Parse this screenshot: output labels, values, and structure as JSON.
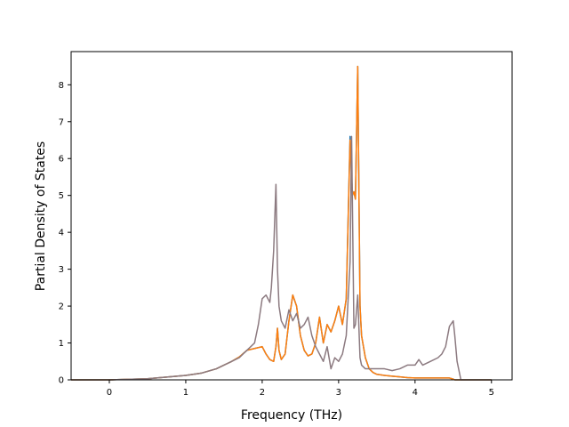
{
  "chart_data": {
    "type": "line",
    "title": "",
    "xlabel": "Frequency (THz)",
    "ylabel": "Partial Density of States",
    "xlim": [
      -0.5,
      5.27
    ],
    "ylim": [
      0,
      8.9
    ],
    "xticks": [
      0,
      1,
      2,
      3,
      4,
      5
    ],
    "yticks": [
      0,
      1,
      2,
      3,
      4,
      5,
      6,
      7,
      8
    ],
    "grid": false,
    "series": [
      {
        "color": "#1f77b4",
        "x": [
          -0.5,
          0,
          0.5,
          1,
          1.2,
          1.4,
          1.6,
          1.7,
          1.8,
          1.9,
          2.0,
          2.05,
          2.1,
          2.15,
          2.18,
          2.2,
          2.22,
          2.25,
          2.3,
          2.35,
          2.4,
          2.45,
          2.5,
          2.55,
          2.6,
          2.65,
          2.7,
          2.75,
          2.8,
          2.85,
          2.9,
          2.95,
          3.0,
          3.05,
          3.1,
          3.15,
          3.18,
          3.2,
          3.22,
          3.25,
          3.28,
          3.3,
          3.35,
          3.4,
          3.45,
          3.5,
          3.6,
          3.7,
          3.8,
          3.9,
          4.0,
          4.05,
          4.1,
          4.2,
          4.3,
          4.4,
          4.45,
          4.5,
          4.52,
          4.55,
          4.6,
          5.0
        ],
        "y": [
          0,
          0,
          0.03,
          0.12,
          0.18,
          0.3,
          0.5,
          0.62,
          0.8,
          0.85,
          0.9,
          0.7,
          0.55,
          0.5,
          0.9,
          1.4,
          0.8,
          0.55,
          0.7,
          1.6,
          2.3,
          2.0,
          1.2,
          0.8,
          0.65,
          0.7,
          1.0,
          1.7,
          1.0,
          1.5,
          1.3,
          1.6,
          2.0,
          1.5,
          2.2,
          6.6,
          5.0,
          5.1,
          4.9,
          8.5,
          2.0,
          1.2,
          0.6,
          0.3,
          0.2,
          0.15,
          0.12,
          0.1,
          0.08,
          0.06,
          0.05,
          0.05,
          0.05,
          0.05,
          0.05,
          0.05,
          0.05,
          0.02,
          0.0,
          0,
          0,
          0
        ]
      },
      {
        "color": "#ff7f0e",
        "x": [
          -0.5,
          0,
          0.5,
          1,
          1.2,
          1.4,
          1.6,
          1.7,
          1.8,
          1.9,
          2.0,
          2.05,
          2.1,
          2.15,
          2.18,
          2.2,
          2.22,
          2.25,
          2.3,
          2.35,
          2.4,
          2.45,
          2.5,
          2.55,
          2.6,
          2.65,
          2.7,
          2.75,
          2.8,
          2.85,
          2.9,
          2.95,
          3.0,
          3.05,
          3.1,
          3.15,
          3.18,
          3.2,
          3.22,
          3.25,
          3.28,
          3.3,
          3.35,
          3.4,
          3.45,
          3.5,
          3.6,
          3.7,
          3.8,
          3.9,
          4.0,
          4.05,
          4.1,
          4.2,
          4.3,
          4.4,
          4.45,
          4.5,
          4.52,
          4.55,
          4.6,
          5.0
        ],
        "y": [
          0,
          0,
          0.03,
          0.12,
          0.18,
          0.3,
          0.5,
          0.62,
          0.8,
          0.85,
          0.9,
          0.7,
          0.55,
          0.5,
          0.9,
          1.4,
          0.8,
          0.55,
          0.7,
          1.6,
          2.3,
          2.0,
          1.2,
          0.8,
          0.65,
          0.7,
          1.0,
          1.7,
          1.0,
          1.5,
          1.3,
          1.6,
          2.0,
          1.5,
          2.2,
          6.5,
          5.0,
          5.1,
          4.9,
          8.5,
          2.0,
          1.2,
          0.6,
          0.3,
          0.2,
          0.15,
          0.12,
          0.1,
          0.08,
          0.06,
          0.05,
          0.05,
          0.05,
          0.05,
          0.05,
          0.05,
          0.05,
          0.02,
          0.0,
          0,
          0,
          0
        ]
      },
      {
        "color": "#8c7a80",
        "x": [
          -0.5,
          0,
          0.5,
          1,
          1.2,
          1.4,
          1.6,
          1.7,
          1.8,
          1.9,
          1.95,
          2.0,
          2.05,
          2.1,
          2.12,
          2.15,
          2.18,
          2.2,
          2.22,
          2.25,
          2.3,
          2.35,
          2.4,
          2.45,
          2.5,
          2.55,
          2.6,
          2.65,
          2.7,
          2.75,
          2.8,
          2.85,
          2.9,
          2.95,
          3.0,
          3.05,
          3.1,
          3.15,
          3.17,
          3.2,
          3.22,
          3.25,
          3.28,
          3.3,
          3.35,
          3.4,
          3.5,
          3.6,
          3.7,
          3.8,
          3.9,
          4.0,
          4.05,
          4.1,
          4.2,
          4.3,
          4.35,
          4.4,
          4.45,
          4.5,
          4.52,
          4.55,
          4.6,
          5.0
        ],
        "y": [
          0,
          0,
          0.03,
          0.12,
          0.18,
          0.3,
          0.5,
          0.6,
          0.8,
          1.0,
          1.5,
          2.2,
          2.3,
          2.1,
          2.5,
          3.5,
          5.3,
          3.0,
          2.0,
          1.6,
          1.4,
          1.9,
          1.6,
          1.8,
          1.4,
          1.5,
          1.7,
          1.2,
          0.9,
          0.7,
          0.5,
          0.9,
          0.3,
          0.6,
          0.5,
          0.7,
          1.2,
          3.2,
          6.6,
          1.4,
          1.5,
          2.3,
          0.6,
          0.4,
          0.3,
          0.3,
          0.3,
          0.3,
          0.25,
          0.3,
          0.4,
          0.4,
          0.55,
          0.4,
          0.5,
          0.6,
          0.7,
          0.9,
          1.45,
          1.6,
          1.2,
          0.5,
          0.0,
          0
        ]
      }
    ]
  }
}
